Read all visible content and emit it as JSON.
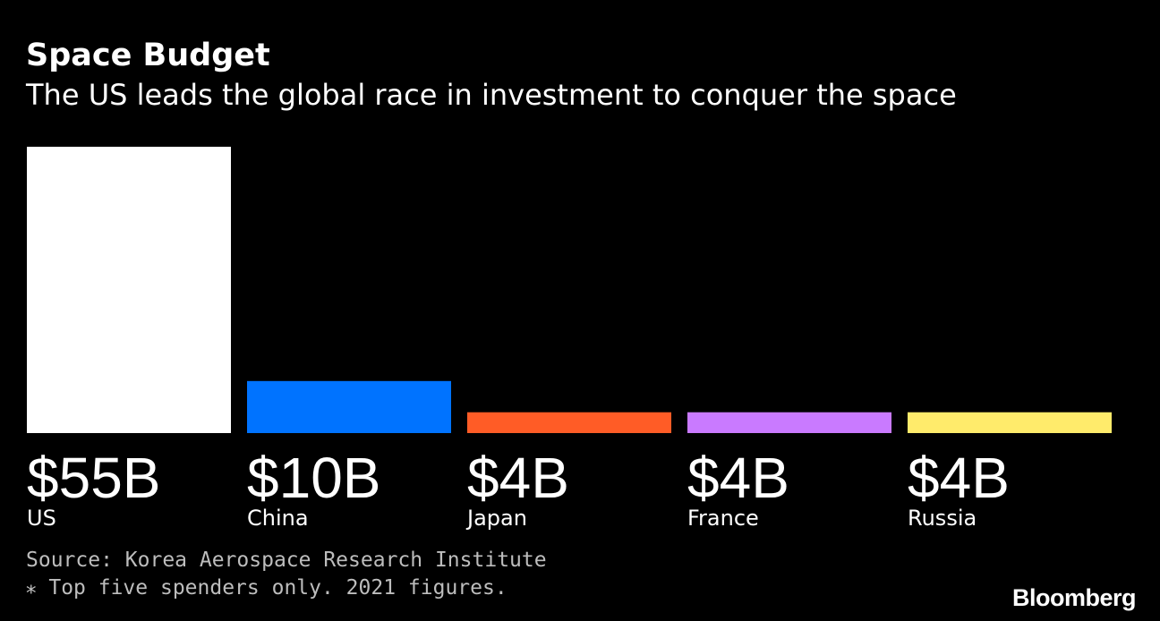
{
  "chart_data": {
    "type": "bar",
    "title": "Space Budget",
    "subtitle": "The US leads the global race in investment to conquer the space",
    "categories": [
      "US",
      "China",
      "Japan",
      "France",
      "Russia"
    ],
    "values": [
      55,
      10,
      4,
      4,
      4
    ],
    "value_labels": [
      "$55B",
      "$10B",
      "$4B",
      "$4B",
      "$4B"
    ],
    "colors": [
      "#ffffff",
      "#0073ff",
      "#ff5c26",
      "#c97aff",
      "#ffeb6b"
    ],
    "unit": "B",
    "xlabel": "",
    "ylabel": "",
    "ylim": [
      0,
      55
    ],
    "grid": false,
    "legend": "none"
  },
  "footer": {
    "source": "Source: Korea Aerospace Research Institute",
    "note": "⁎ Top five spenders only. 2021 figures.",
    "brand": "Bloomberg"
  }
}
